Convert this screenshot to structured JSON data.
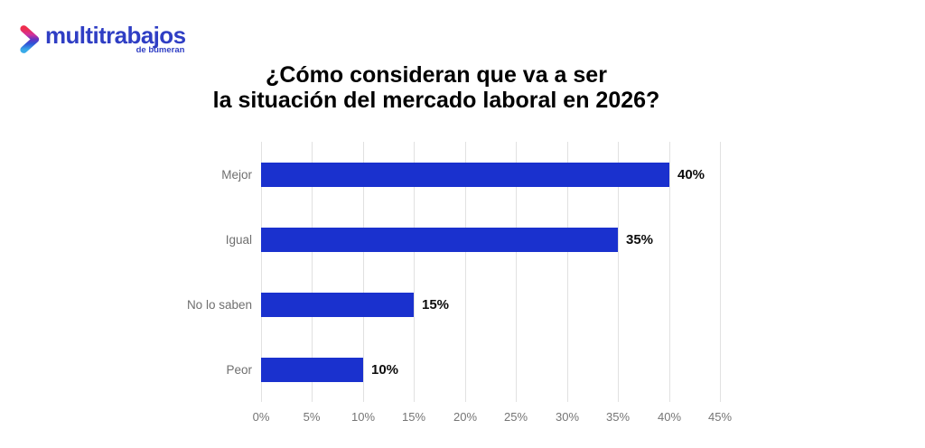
{
  "logo": {
    "brand": "multitrabajos",
    "sub_brand": "de bumeran",
    "brand_color": "#2F3EC4",
    "icon": "chevron-right-gradient-icon",
    "icon_gradient": [
      "#ee2d4e",
      "#d2309b",
      "#6233c0",
      "#2e56d8",
      "#38aae8"
    ]
  },
  "title": {
    "line1": "¿Cómo consideran que va a ser",
    "line2": "la situación del mercado laboral en 2026?"
  },
  "chart_data": {
    "type": "bar",
    "orientation": "horizontal",
    "title": "¿Cómo consideran que va a ser la situación del mercado laboral en 2026?",
    "categories": [
      "Mejor",
      "Igual",
      "No lo saben",
      "Peor"
    ],
    "values": [
      40,
      35,
      15,
      10
    ],
    "value_labels": [
      "40%",
      "35%",
      "15%",
      "10%"
    ],
    "x_tick_values": [
      0,
      5,
      10,
      15,
      20,
      25,
      30,
      35,
      40,
      45
    ],
    "x_tick_labels": [
      "0%",
      "5%",
      "10%",
      "15%",
      "20%",
      "25%",
      "30%",
      "35%",
      "40%",
      "45%"
    ],
    "xlim": [
      0,
      45
    ],
    "xlabel": "",
    "ylabel": "",
    "grid": true,
    "legend": false,
    "bar_color": "#1A31CE",
    "gridline_color": "#e1e1e1",
    "category_label_color": "#6f6f6f",
    "tick_label_color": "#757575",
    "value_label_color": "#0d0d0d"
  }
}
